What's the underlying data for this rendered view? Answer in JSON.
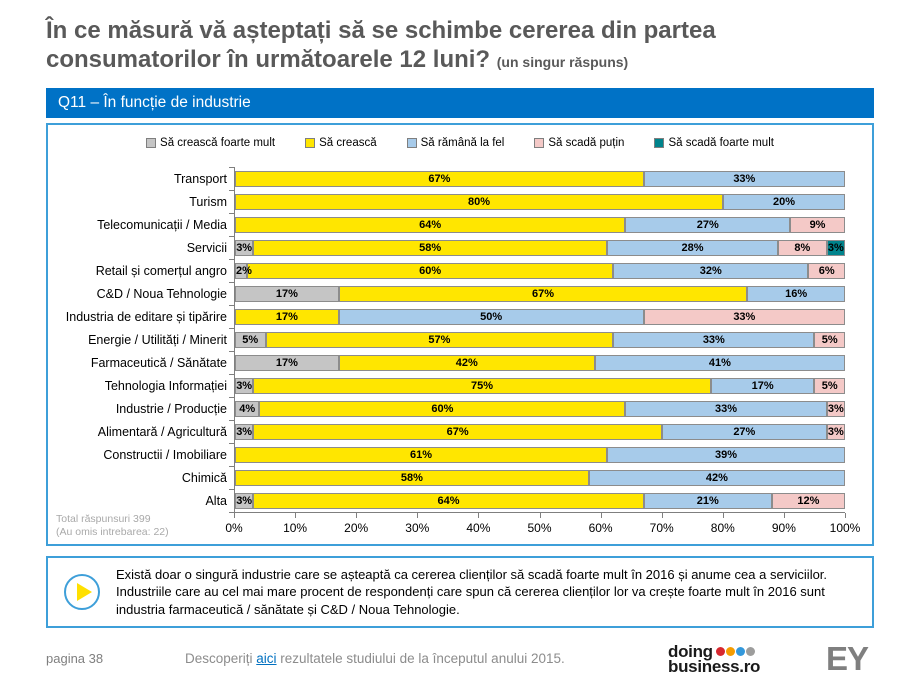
{
  "page": {
    "title_line1": "În ce măsură vă așteptați să se schimbe cererea din partea",
    "title_line2": "consumatorilor în următoarele 12 luni?",
    "title_suffix": "(un singur răspuns)"
  },
  "band": {
    "label": "Q11 – În funcție de industrie"
  },
  "chart_data": {
    "type": "bar",
    "orientation": "horizontal",
    "stacked": true,
    "unit": "%",
    "xlim": [
      0,
      100
    ],
    "legend_position": "top",
    "categories": [
      "Transport",
      "Turism",
      "Telecomunicații / Media",
      "Servicii",
      "Retail și comerțul angro",
      "C&D / Noua Tehnologie",
      "Industria de editare și tipărire",
      "Energie / Utilități / Minerit",
      "Farmaceutică / Sănătate",
      "Tehnologia Informației",
      "Industrie / Producție",
      "Alimentară / Agricultură",
      "Constructii / Imobiliare",
      "Chimică",
      "Alta"
    ],
    "series": [
      {
        "name": "Să crească foarte mult",
        "color": "#C5C5C5",
        "values": [
          0,
          0,
          0,
          3,
          2,
          17,
          0,
          5,
          17,
          3,
          4,
          3,
          0,
          0,
          3
        ]
      },
      {
        "name": "Să crească",
        "color": "#FFE600",
        "values": [
          67,
          80,
          64,
          58,
          60,
          67,
          17,
          57,
          42,
          75,
          60,
          67,
          61,
          58,
          64
        ]
      },
      {
        "name": "Să rămână la fel",
        "color": "#A7CBEA",
        "values": [
          33,
          20,
          27,
          28,
          32,
          16,
          50,
          33,
          41,
          17,
          33,
          27,
          39,
          42,
          21
        ]
      },
      {
        "name": "Să scadă puțin",
        "color": "#F4C9C7",
        "values": [
          0,
          0,
          9,
          8,
          6,
          0,
          33,
          5,
          0,
          5,
          3,
          3,
          0,
          0,
          12
        ]
      },
      {
        "name": "Să scadă foarte mult",
        "color": "#00838C",
        "values": [
          0,
          0,
          0,
          3,
          0,
          0,
          0,
          0,
          0,
          0,
          0,
          0,
          0,
          0,
          0
        ]
      }
    ],
    "xticks": [
      "0%",
      "10%",
      "20%",
      "30%",
      "40%",
      "50%",
      "60%",
      "70%",
      "80%",
      "90%",
      "100%"
    ],
    "note_line1": "Total răspunsuri 399",
    "note_line2": "(Au omis intrebarea: 22)"
  },
  "callout": {
    "text": "Există doar o singură industrie care se așteaptă ca cererea clienților să scadă foarte mult în 2016 și anume cea a serviciilor. Industriile care au cel mai mare procent de respondenți care spun că cererea clienților lor va crește foarte mult în 2016 sunt industria farmaceutică / sănătate și C&D / Noua Tehnologie."
  },
  "footer": {
    "page_label": "pagina 38",
    "link_prefix": "Descoperiți ",
    "link_text": "aici",
    "link_suffix": " rezultatele studiului de la începutul anului 2015.",
    "logo_doing_line1": "doing",
    "logo_doing_line2": "business.ro",
    "logo_ey": "EY",
    "dot_colors": [
      "#D7282F",
      "#F59C00",
      "#3398DB",
      "#9D9D9C"
    ]
  },
  "colors": {
    "title": "#595959",
    "band_blue": "#0072C6",
    "box_border_blue": "#3E9FD9",
    "segment_border": "#8C8C8C",
    "axis": "#7F7F7F",
    "note_gray": "#A9A9A9",
    "link_blue": "#0070C0",
    "ey_gray": "#7F7F7F"
  }
}
